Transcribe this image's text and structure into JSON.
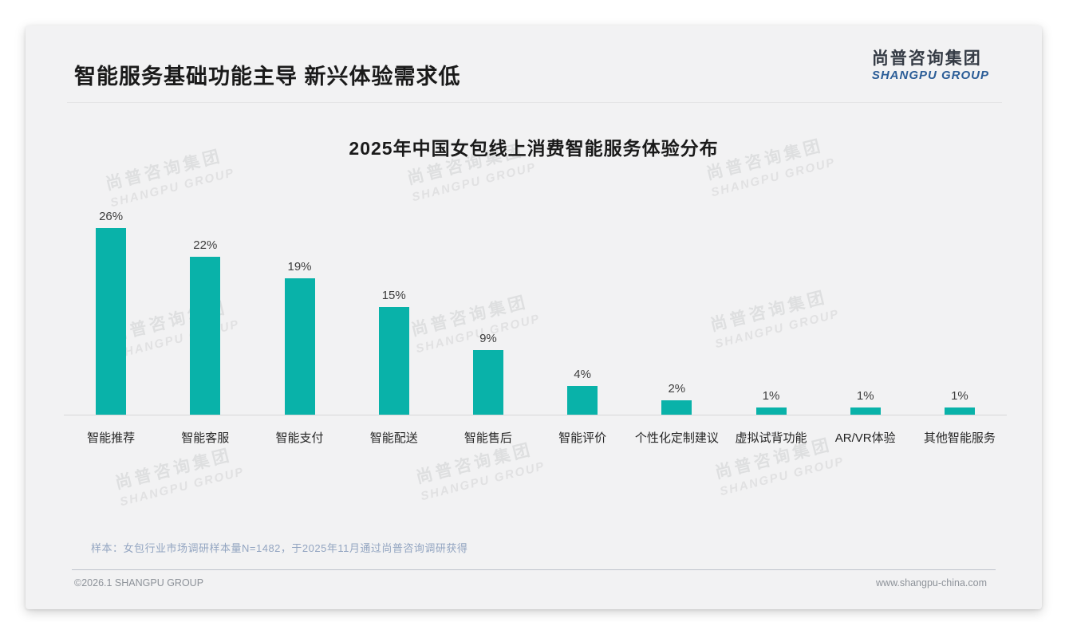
{
  "page": {
    "header_title": "智能服务基础功能主导 新兴体验需求低",
    "logo": {
      "cn": "尚普咨询集团",
      "en": "SHANGPU GROUP"
    },
    "watermark": {
      "cn": "尚普咨询集团",
      "en": "SHANGPU GROUP"
    },
    "note": "样本：女包行业市场调研样本量N=1482，于2025年11月通过尚普咨询调研获得",
    "footer_left": "©2026.1 SHANGPU GROUP",
    "footer_right": "www.shangpu-china.com"
  },
  "colors": {
    "bar": "#09b2a9",
    "logo_blue": "#2b5d97",
    "card_bg": "#f2f2f3",
    "note_text": "#93a5c1"
  },
  "chart_data": {
    "type": "bar",
    "title": "2025年中国女包线上消费智能服务体验分布",
    "categories": [
      "智能推荐",
      "智能客服",
      "智能支付",
      "智能配送",
      "智能售后",
      "智能评价",
      "个性化定制建议",
      "虚拟试背功能",
      "AR/VR体验",
      "其他智能服务"
    ],
    "values": [
      26,
      22,
      19,
      15,
      9,
      4,
      2,
      1,
      1,
      1
    ],
    "value_labels": [
      "26%",
      "22%",
      "19%",
      "15%",
      "9%",
      "4%",
      "2%",
      "1%",
      "1%",
      "1%"
    ],
    "unit": "%",
    "xlabel": "",
    "ylabel": "",
    "ylim": [
      0,
      30
    ],
    "grid": false,
    "legend": false,
    "bar_color": "#09b2a9"
  }
}
